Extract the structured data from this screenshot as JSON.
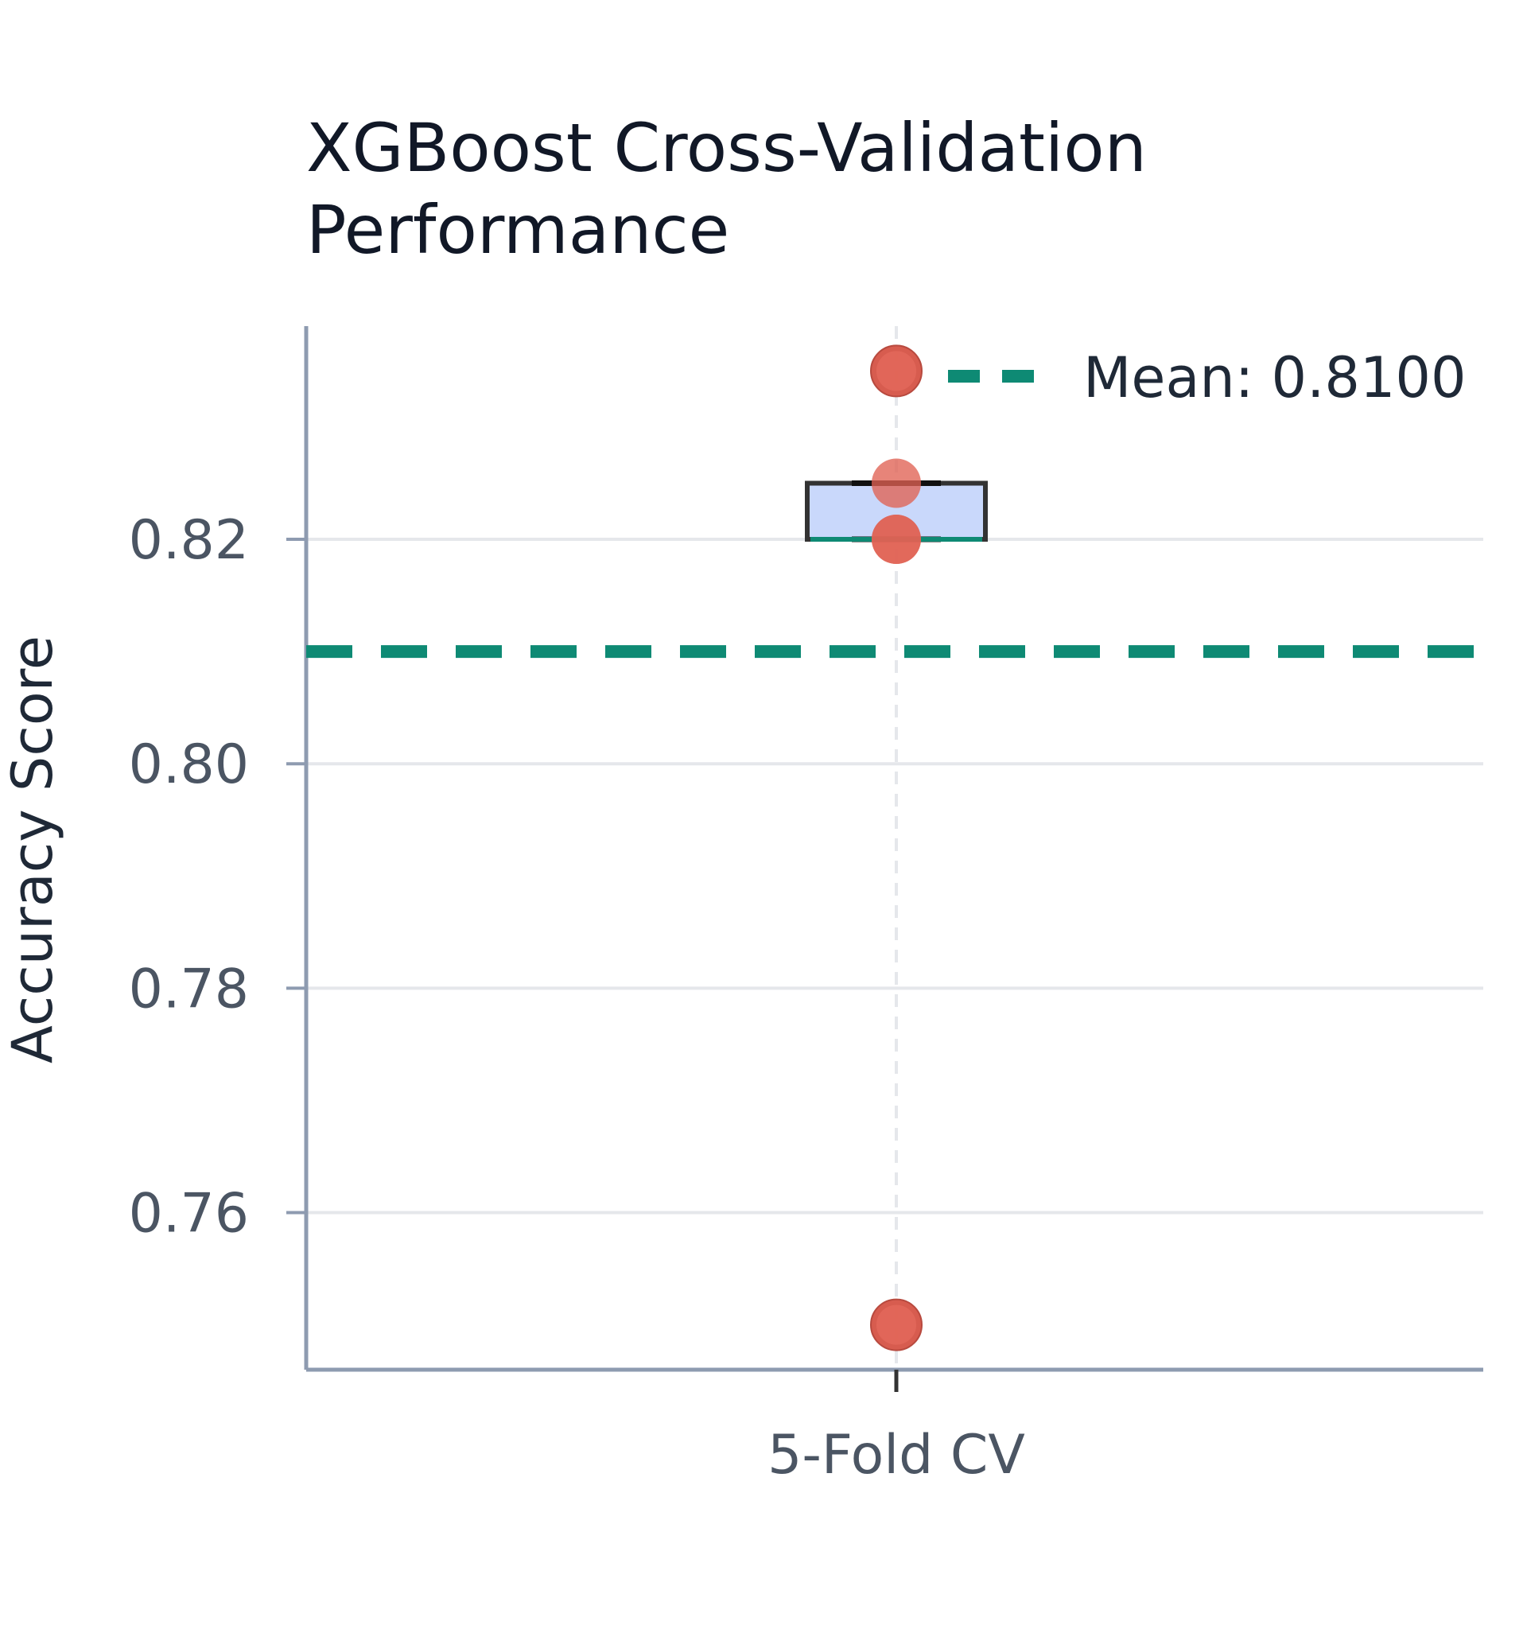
{
  "chart_data": {
    "type": "box",
    "title_lines": [
      "XGBoost Cross-Validation",
      "Performance"
    ],
    "xlabel": "",
    "ylabel": "Accuracy Score",
    "categories": [
      "5-Fold CV"
    ],
    "y_ticks": [
      {
        "value": 0.76,
        "label": "0.76"
      },
      {
        "value": 0.78,
        "label": "0.78"
      },
      {
        "value": 0.8,
        "label": "0.80"
      },
      {
        "value": 0.82,
        "label": "0.82"
      }
    ],
    "ylim": [
      0.746,
      0.839
    ],
    "fold_scores": [
      0.825,
      0.82,
      0.82,
      0.835,
      0.75
    ],
    "box": {
      "q1": 0.82,
      "median": 0.82,
      "q3": 0.825,
      "whisker_low": 0.82,
      "whisker_high": 0.825
    },
    "outliers": [
      0.835,
      0.75
    ],
    "mean": 0.81,
    "legend": {
      "label": "Mean: 0.8100",
      "position": "top-right"
    },
    "grid": true,
    "colors": {
      "box_fill": "#c9d8fb",
      "box_edge": "#333333",
      "median": "#0e8a74",
      "mean_line": "#0e8a74",
      "points": "#e06253",
      "outlier_edge": "#b84a3f",
      "grid": "#e5e7eb",
      "axis": "#8e9bb0"
    }
  }
}
